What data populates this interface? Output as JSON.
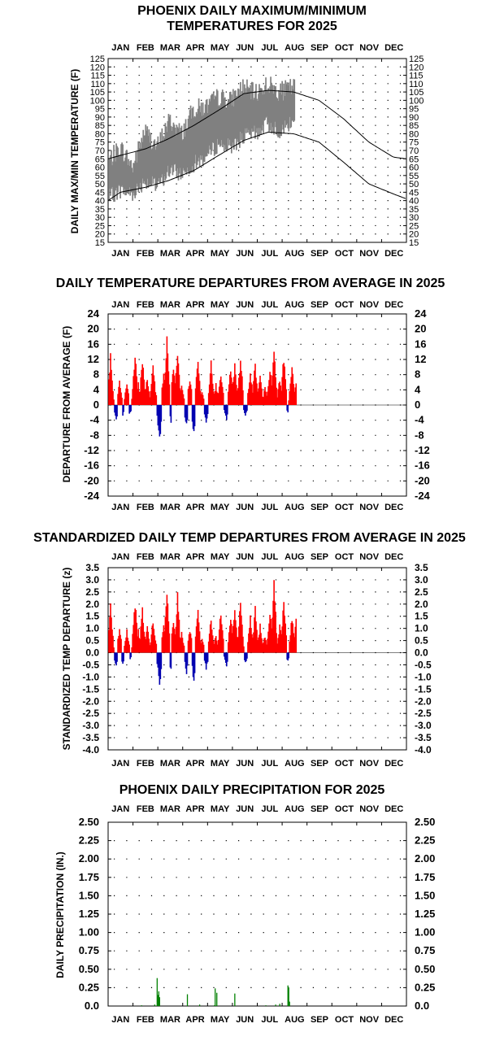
{
  "chart_data": [
    {
      "type": "area",
      "title_line1": "PHOENIX DAILY MAXIMUM/MINIMUM",
      "title_line2": "TEMPERATURES FOR 2025",
      "ylabel": "DAILY MAX/MIN TEMPERATURE (F)",
      "months": [
        "JAN",
        "FEB",
        "MAR",
        "APR",
        "MAY",
        "JUN",
        "JUL",
        "AUG",
        "SEP",
        "OCT",
        "NOV",
        "DEC"
      ],
      "yticks": [
        15,
        20,
        25,
        30,
        35,
        40,
        45,
        50,
        55,
        60,
        65,
        70,
        75,
        80,
        85,
        90,
        95,
        100,
        105,
        110,
        115,
        120,
        125
      ],
      "ylim": [
        15,
        125
      ],
      "grid": "dotted",
      "colors": {
        "observed": "#808080",
        "normals": "#000000"
      },
      "normal_high_monthly": {
        "x_day": [
          0,
          15,
          46,
          74,
          105,
          135,
          166,
          196,
          227,
          258,
          288,
          319,
          349,
          365
        ],
        "values": [
          65,
          67,
          71,
          77,
          85,
          94,
          104,
          106,
          105,
          100,
          89,
          75,
          66,
          65
        ]
      },
      "normal_low_monthly": {
        "x_day": [
          0,
          15,
          46,
          74,
          105,
          135,
          166,
          196,
          227,
          258,
          288,
          319,
          349,
          365
        ],
        "values": [
          40,
          45,
          48,
          52,
          58,
          67,
          76,
          81,
          80,
          75,
          63,
          50,
          44,
          41
        ]
      },
      "observed_max_monthly": {
        "x_day": [
          1,
          15,
          30,
          45,
          60,
          75,
          90,
          105,
          120,
          135,
          150,
          165,
          180,
          195,
          210,
          225
        ],
        "values": [
          64,
          72,
          60,
          82,
          72,
          88,
          80,
          95,
          96,
          102,
          100,
          108,
          104,
          110,
          105,
          108
        ]
      },
      "observed_min_monthly": {
        "x_day": [
          1,
          15,
          30,
          45,
          60,
          75,
          90,
          105,
          120,
          135,
          150,
          165,
          180,
          195,
          210,
          225
        ],
        "values": [
          42,
          46,
          44,
          52,
          48,
          58,
          56,
          62,
          66,
          74,
          72,
          78,
          80,
          86,
          82,
          86
        ]
      }
    },
    {
      "type": "bar",
      "title": "DAILY TEMPERATURE DEPARTURES FROM AVERAGE IN 2025",
      "ylabel": "DEPARTURE FROM AVERAGE (F)",
      "months": [
        "JAN",
        "FEB",
        "MAR",
        "APR",
        "MAY",
        "JUN",
        "JUL",
        "AUG",
        "SEP",
        "OCT",
        "NOV",
        "DEC"
      ],
      "yticks": [
        -24,
        -20,
        -16,
        -12,
        -8,
        -4,
        0,
        4,
        8,
        12,
        16,
        20,
        24
      ],
      "ylim": [
        -24,
        24
      ],
      "grid": "dotted",
      "colors": {
        "positive": "#ff0000",
        "negative": "#0000b0"
      },
      "peaks": {
        "x_day": [
          3,
          10,
          14,
          18,
          23,
          26,
          33,
          37,
          42,
          48,
          55,
          58,
          63,
          68,
          72,
          77,
          80,
          85,
          90,
          96,
          100,
          105,
          110,
          115,
          120,
          126,
          132,
          138,
          145,
          150,
          155,
          162,
          168,
          174,
          180,
          186,
          192,
          198,
          203,
          210,
          215,
          220,
          225,
          230
        ],
        "values": [
          14,
          -4,
          7,
          -3,
          6,
          -3,
          15,
          6,
          14,
          8,
          12,
          4,
          -10,
          9,
          19,
          -5,
          11,
          17,
          6,
          -6,
          8,
          -9,
          14,
          4,
          -5,
          12,
          6,
          10,
          -4,
          11,
          12,
          14,
          -3,
          10,
          12,
          8,
          5,
          11,
          16,
          8,
          14,
          -2,
          11,
          7
        ]
      }
    },
    {
      "type": "bar",
      "title": "STANDARDIZED DAILY TEMP DEPARTURES FROM AVERAGE IN 2025",
      "ylabel": "STANDARDIZED TEMP DEPARTURE (z)",
      "months": [
        "JAN",
        "FEB",
        "MAR",
        "APR",
        "MAY",
        "JUN",
        "JUL",
        "AUG",
        "SEP",
        "OCT",
        "NOV",
        "DEC"
      ],
      "yticks": [
        "-4.0",
        "-3.5",
        "-3.0",
        "-2.5",
        "-2.0",
        "-1.5",
        "-1.0",
        "-0.5",
        "0.0",
        "0.5",
        "1.0",
        "1.5",
        "2.0",
        "2.5",
        "3.0",
        "3.5"
      ],
      "ylim": [
        -4,
        3.5
      ],
      "grid": "dotted",
      "colors": {
        "positive": "#ff0000",
        "negative": "#0000b0"
      },
      "peaks": {
        "x_day": [
          3,
          10,
          14,
          18,
          23,
          26,
          33,
          37,
          42,
          48,
          55,
          58,
          63,
          68,
          72,
          77,
          80,
          85,
          90,
          96,
          100,
          105,
          110,
          115,
          120,
          126,
          132,
          138,
          145,
          150,
          155,
          162,
          168,
          174,
          180,
          186,
          192,
          198,
          203,
          210,
          215,
          220,
          225,
          230
        ],
        "values": [
          2.2,
          -0.6,
          1.1,
          -0.5,
          1.0,
          -0.4,
          2.4,
          1.0,
          2.0,
          1.2,
          1.6,
          0.6,
          -1.4,
          1.2,
          2.7,
          -0.8,
          1.5,
          2.5,
          0.9,
          -0.9,
          1.1,
          -1.3,
          2.0,
          0.6,
          -0.7,
          1.6,
          0.8,
          1.8,
          -0.6,
          1.7,
          2.0,
          2.5,
          -0.5,
          1.6,
          2.0,
          1.2,
          0.8,
          1.8,
          3.2,
          1.2,
          2.4,
          -0.4,
          1.6,
          1.4
        ]
      }
    },
    {
      "type": "bar",
      "title": "PHOENIX DAILY PRECIPITATION FOR 2025",
      "ylabel": "DAILY PRECIPITATION (IN.)",
      "months": [
        "JAN",
        "FEB",
        "MAR",
        "APR",
        "MAY",
        "JUN",
        "JUL",
        "AUG",
        "SEP",
        "OCT",
        "NOV",
        "DEC"
      ],
      "yticks": [
        "0.0",
        "0.25",
        "0.50",
        "0.75",
        "1.00",
        "1.25",
        "1.50",
        "1.75",
        "2.00",
        "2.25",
        "2.50"
      ],
      "ylim": [
        0,
        2.5
      ],
      "grid": "dotted",
      "colors": {
        "bars": "#008000"
      },
      "x_day": [
        41,
        57,
        60,
        61,
        62,
        63,
        97,
        112,
        130,
        131,
        133,
        155,
        193,
        205,
        210,
        220,
        221,
        222
      ],
      "values": [
        0.01,
        0.02,
        0.38,
        0.15,
        0.2,
        0.12,
        0.16,
        0.02,
        0.01,
        0.24,
        0.18,
        0.17,
        0.01,
        0.02,
        0.03,
        0.28,
        0.25,
        0.06
      ]
    }
  ]
}
